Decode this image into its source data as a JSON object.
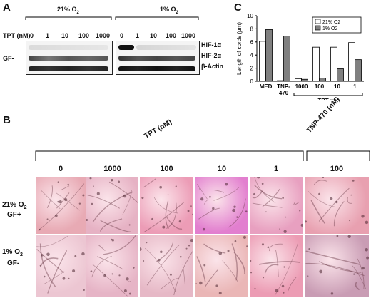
{
  "panels": {
    "a": "A",
    "b": "B",
    "c": "C"
  },
  "blot": {
    "group_left": "21% O",
    "group_left_sub": "2",
    "group_right": "1% O",
    "group_right_sub": "2",
    "tpt_label": "TPT (nM)",
    "doses": [
      "0",
      "1",
      "10",
      "100",
      "1000"
    ],
    "gf_label": "GF-",
    "rows": [
      "HIF-1α",
      "HIF-2α",
      "β-Actin"
    ]
  },
  "chart_data": {
    "type": "bar",
    "categories": [
      "MED",
      "TNP-470",
      "1000",
      "100",
      "10",
      "1"
    ],
    "series": [
      {
        "name": "21% O2",
        "values": [
          6.1,
          0.1,
          0.4,
          5.2,
          5.2,
          5.9
        ]
      },
      {
        "name": "1% O2",
        "values": [
          7.9,
          6.9,
          0.3,
          0.5,
          1.9,
          3.3
        ]
      }
    ],
    "ylabel": "Length of cords (μm)",
    "yticks": [
      "0",
      "2",
      "4",
      "6",
      "8",
      "10"
    ],
    "ylim": [
      0,
      10
    ],
    "group_label": "TPT nM",
    "colors": {
      "21% O2": "#ffffff",
      "1% O2": "#808080"
    },
    "legend_position": "top-right"
  },
  "micro": {
    "tpt_header": "TPT (nM)",
    "tnp_header": "TNP-470 (nM)",
    "columns": [
      "0",
      "1000",
      "100",
      "10",
      "1",
      "100"
    ],
    "row1_label_a": "21% O",
    "row1_label_a_sub": "2",
    "row1_label_b": "GF+",
    "row2_label_a": "1% O",
    "row2_label_a_sub": "2",
    "row2_label_b": "GF-"
  }
}
